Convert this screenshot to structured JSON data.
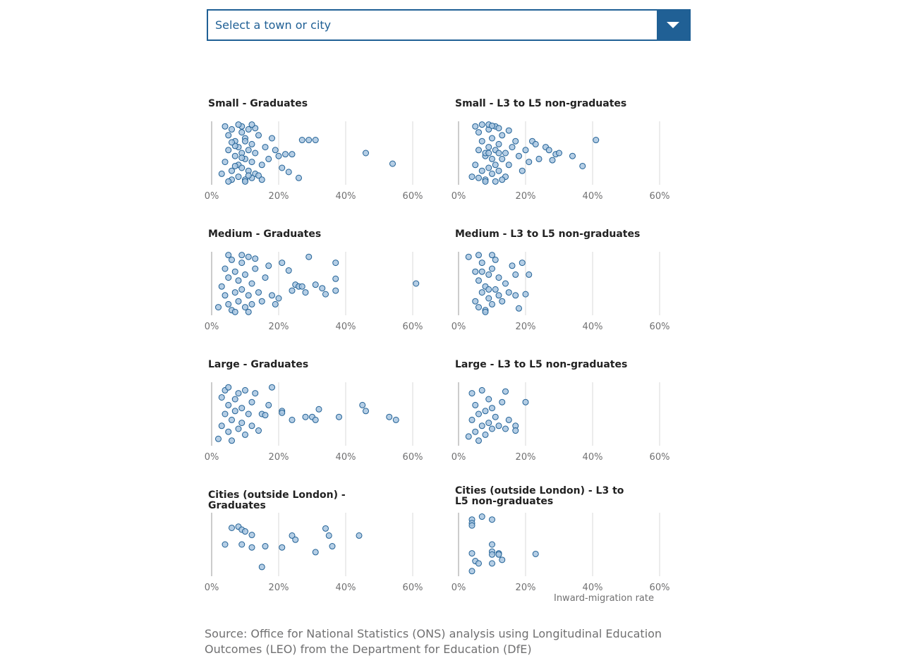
{
  "dropdown": {
    "placeholder": "Select a town or city"
  },
  "source_note": "Source: Office for National Statistics (ONS) analysis using Longitudinal Education Outcomes (LEO) from the Department for Education (DfE)",
  "x_axis_label": "Inward-migration rate",
  "colors": {
    "accent": "#206095",
    "point_fill": "#a8c5e0",
    "point_stroke": "#206095",
    "grid": "#d9d9d9",
    "axis": "#999999"
  },
  "chart_data": [
    {
      "type": "scatter",
      "title": "Small - Graduates",
      "xlim": [
        0,
        60
      ],
      "xticks": [
        "0%",
        "20%",
        "40%",
        "60%"
      ],
      "grid": true,
      "x": [
        3,
        4,
        5,
        5,
        6,
        6,
        7,
        7,
        8,
        8,
        8,
        9,
        9,
        9,
        10,
        10,
        10,
        11,
        11,
        11,
        12,
        12,
        13,
        13,
        14,
        15,
        16,
        17,
        18,
        19,
        20,
        21,
        22,
        23,
        24,
        26,
        27,
        29,
        31,
        46,
        54,
        4,
        6,
        7,
        9,
        10,
        12,
        14,
        5,
        8,
        11,
        13,
        15,
        6,
        9,
        12,
        7,
        10
      ],
      "y": [
        0.15,
        0.35,
        0.55,
        0.8,
        0.2,
        0.9,
        0.45,
        0.7,
        0.1,
        0.3,
        0.6,
        0.25,
        0.5,
        0.85,
        0.05,
        0.4,
        0.75,
        0.2,
        0.55,
        0.9,
        0.35,
        0.65,
        0.15,
        0.5,
        0.8,
        0.3,
        0.6,
        0.4,
        0.75,
        0.55,
        0.45,
        0.25,
        0.48,
        0.18,
        0.48,
        0.08,
        0.72,
        0.72,
        0.72,
        0.5,
        0.32,
        0.95,
        0.05,
        0.62,
        0.95,
        0.02,
        0.08,
        0.12,
        0.02,
        0.98,
        0.12,
        0.92,
        0.05,
        0.68,
        0.42,
        0.98,
        0.28,
        0.7
      ]
    },
    {
      "type": "scatter",
      "title": "Small - L3 to L5 non-graduates",
      "xlim": [
        0,
        60
      ],
      "xticks": [
        "0%",
        "20%",
        "40%",
        "60%"
      ],
      "grid": true,
      "x": [
        4,
        5,
        6,
        6,
        7,
        7,
        8,
        8,
        9,
        9,
        9,
        10,
        10,
        10,
        11,
        11,
        11,
        12,
        12,
        13,
        13,
        14,
        15,
        16,
        17,
        18,
        19,
        20,
        21,
        22,
        23,
        24,
        26,
        27,
        28,
        29,
        30,
        34,
        37,
        41,
        5,
        8,
        9,
        11,
        12,
        14,
        6,
        7,
        10,
        13,
        15,
        8,
        9,
        12
      ],
      "y": [
        0.1,
        0.3,
        0.55,
        0.85,
        0.2,
        0.7,
        0.05,
        0.45,
        0.25,
        0.6,
        0.9,
        0.15,
        0.4,
        0.75,
        0.3,
        0.55,
        0.95,
        0.2,
        0.65,
        0.4,
        0.8,
        0.5,
        0.3,
        0.6,
        0.7,
        0.45,
        0.2,
        0.55,
        0.35,
        0.7,
        0.65,
        0.4,
        0.6,
        0.55,
        0.38,
        0.48,
        0.5,
        0.45,
        0.28,
        0.72,
        0.95,
        0.02,
        0.98,
        0.02,
        0.92,
        0.1,
        0.08,
        0.98,
        0.96,
        0.05,
        0.88,
        0.5,
        0.5,
        0.5
      ]
    },
    {
      "type": "scatter",
      "title": "Medium - Graduates",
      "xlim": [
        0,
        60
      ],
      "xticks": [
        "0%",
        "20%",
        "40%",
        "60%"
      ],
      "grid": true,
      "x": [
        2,
        3,
        4,
        4,
        5,
        5,
        6,
        6,
        7,
        7,
        8,
        8,
        9,
        9,
        10,
        10,
        11,
        11,
        12,
        12,
        13,
        14,
        15,
        16,
        17,
        18,
        19,
        20,
        21,
        23,
        24,
        25,
        26,
        27,
        28,
        29,
        31,
        33,
        34,
        37,
        37,
        37,
        61,
        5,
        7,
        9,
        11,
        13
      ],
      "y": [
        0.1,
        0.45,
        0.3,
        0.75,
        0.15,
        0.6,
        0.05,
        0.9,
        0.35,
        0.7,
        0.2,
        0.55,
        0.85,
        0.4,
        0.1,
        0.65,
        0.3,
        0.95,
        0.5,
        0.15,
        0.75,
        0.35,
        0.2,
        0.6,
        0.8,
        0.3,
        0.15,
        0.25,
        0.85,
        0.72,
        0.38,
        0.48,
        0.45,
        0.45,
        0.35,
        0.95,
        0.48,
        0.42,
        0.32,
        0.85,
        0.58,
        0.38,
        0.5,
        0.98,
        0.02,
        0.98,
        0.02,
        0.92
      ]
    },
    {
      "type": "scatter",
      "title": "Medium - L3 to L5 non-graduates",
      "xlim": [
        0,
        60
      ],
      "xticks": [
        "0%",
        "20%",
        "40%",
        "60%"
      ],
      "grid": true,
      "x": [
        3,
        5,
        5,
        6,
        6,
        7,
        7,
        8,
        8,
        9,
        9,
        10,
        10,
        11,
        11,
        12,
        12,
        13,
        14,
        15,
        16,
        17,
        17,
        18,
        19,
        20,
        21,
        6,
        8,
        10,
        7,
        9
      ],
      "y": [
        0.95,
        0.2,
        0.7,
        0.1,
        0.55,
        0.35,
        0.85,
        0.05,
        0.45,
        0.25,
        0.65,
        0.15,
        0.75,
        0.4,
        0.9,
        0.3,
        0.6,
        0.2,
        0.5,
        0.35,
        0.8,
        0.3,
        0.65,
        0.08,
        0.85,
        0.32,
        0.65,
        0.98,
        0.02,
        0.98,
        0.7,
        0.4
      ]
    },
    {
      "type": "scatter",
      "title": "Large - Graduates",
      "xlim": [
        0,
        60
      ],
      "xticks": [
        "0%",
        "20%",
        "40%",
        "60%"
      ],
      "grid": true,
      "x": [
        2,
        3,
        3,
        4,
        4,
        5,
        5,
        5,
        6,
        6,
        7,
        7,
        8,
        8,
        9,
        9,
        10,
        10,
        11,
        12,
        12,
        13,
        14,
        15,
        16,
        17,
        18,
        21,
        21,
        24,
        28,
        30,
        31,
        32,
        38,
        45,
        46,
        53,
        55
      ],
      "y": [
        0.08,
        0.3,
        0.78,
        0.5,
        0.9,
        0.2,
        0.65,
        0.95,
        0.4,
        0.05,
        0.55,
        0.75,
        0.25,
        0.85,
        0.6,
        0.35,
        0.9,
        0.15,
        0.5,
        0.7,
        0.3,
        0.85,
        0.22,
        0.5,
        0.48,
        0.65,
        0.95,
        0.55,
        0.52,
        0.4,
        0.45,
        0.45,
        0.4,
        0.58,
        0.45,
        0.65,
        0.55,
        0.45,
        0.4
      ]
    },
    {
      "type": "scatter",
      "title": "Large - L3 to L5 non-graduates",
      "xlim": [
        0,
        60
      ],
      "xticks": [
        "0%",
        "20%",
        "40%",
        "60%"
      ],
      "grid": true,
      "x": [
        3,
        4,
        4,
        5,
        5,
        6,
        6,
        7,
        7,
        8,
        8,
        9,
        9,
        10,
        10,
        11,
        12,
        13,
        14,
        14,
        15,
        17,
        17,
        20
      ],
      "y": [
        0.12,
        0.4,
        0.85,
        0.2,
        0.65,
        0.05,
        0.5,
        0.3,
        0.9,
        0.55,
        0.15,
        0.75,
        0.35,
        0.6,
        0.25,
        0.45,
        0.3,
        0.7,
        0.88,
        0.25,
        0.4,
        0.3,
        0.22,
        0.7
      ]
    },
    {
      "type": "scatter",
      "title": "Cities (outside London) - Graduates",
      "xlim": [
        0,
        60
      ],
      "xticks": [
        "0%",
        "20%",
        "40%",
        "60%"
      ],
      "grid": true,
      "x": [
        4,
        6,
        8,
        9,
        9,
        10,
        12,
        12,
        15,
        16,
        21,
        24,
        25,
        31,
        34,
        35,
        36,
        44
      ],
      "y": [
        0.5,
        0.78,
        0.8,
        0.75,
        0.5,
        0.72,
        0.66,
        0.45,
        0.12,
        0.47,
        0.45,
        0.65,
        0.58,
        0.37,
        0.77,
        0.65,
        0.47,
        0.65
      ]
    },
    {
      "type": "scatter",
      "title": "Cities (outside London) - L3 to L5 non-graduates",
      "xlim": [
        0,
        60
      ],
      "xticks": [
        "0%",
        "20%",
        "40%",
        "60%"
      ],
      "grid": true,
      "x": [
        4,
        4,
        4,
        4,
        4,
        5,
        6,
        7,
        10,
        10,
        10,
        10,
        10,
        12,
        12,
        13,
        23
      ],
      "y": [
        0.92,
        0.86,
        0.82,
        0.35,
        0.05,
        0.22,
        0.18,
        0.97,
        0.92,
        0.5,
        0.38,
        0.33,
        0.18,
        0.35,
        0.33,
        0.24,
        0.34
      ]
    }
  ]
}
